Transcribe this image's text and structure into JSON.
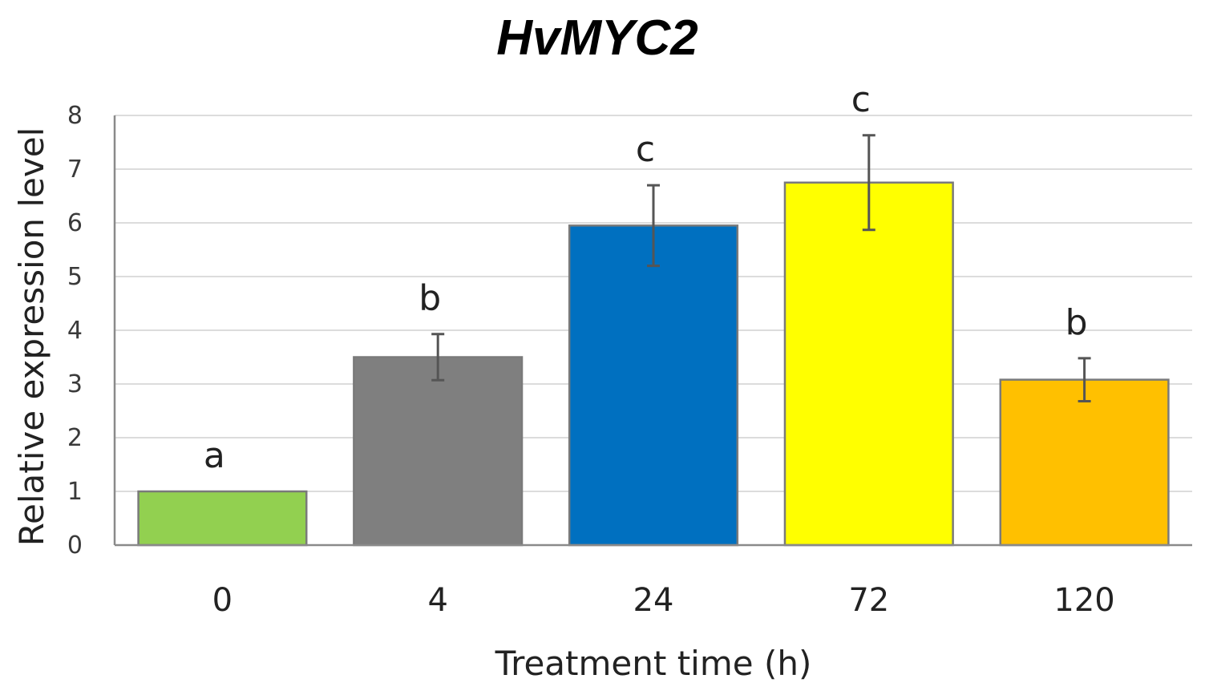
{
  "chart_data": {
    "type": "bar",
    "title": "HvMYC2",
    "xlabel": "Treatment time (h)",
    "ylabel": "Relative expression level",
    "categories": [
      "0",
      "4",
      "24",
      "72",
      "120"
    ],
    "values": [
      1.0,
      3.5,
      5.95,
      6.75,
      3.08
    ],
    "errors": [
      0,
      0.43,
      0.75,
      0.88,
      0.4
    ],
    "significance": [
      "a",
      "b",
      "c",
      "c",
      "b"
    ],
    "colors": [
      "#92D050",
      "#7F7F7F",
      "#0070C0",
      "#FFFF00",
      "#FFC000"
    ],
    "ylim": [
      0,
      8
    ],
    "yticks": [
      "0",
      "1",
      "2",
      "3",
      "4",
      "5",
      "6",
      "7",
      "8"
    ],
    "grid": true,
    "legend": "none"
  }
}
